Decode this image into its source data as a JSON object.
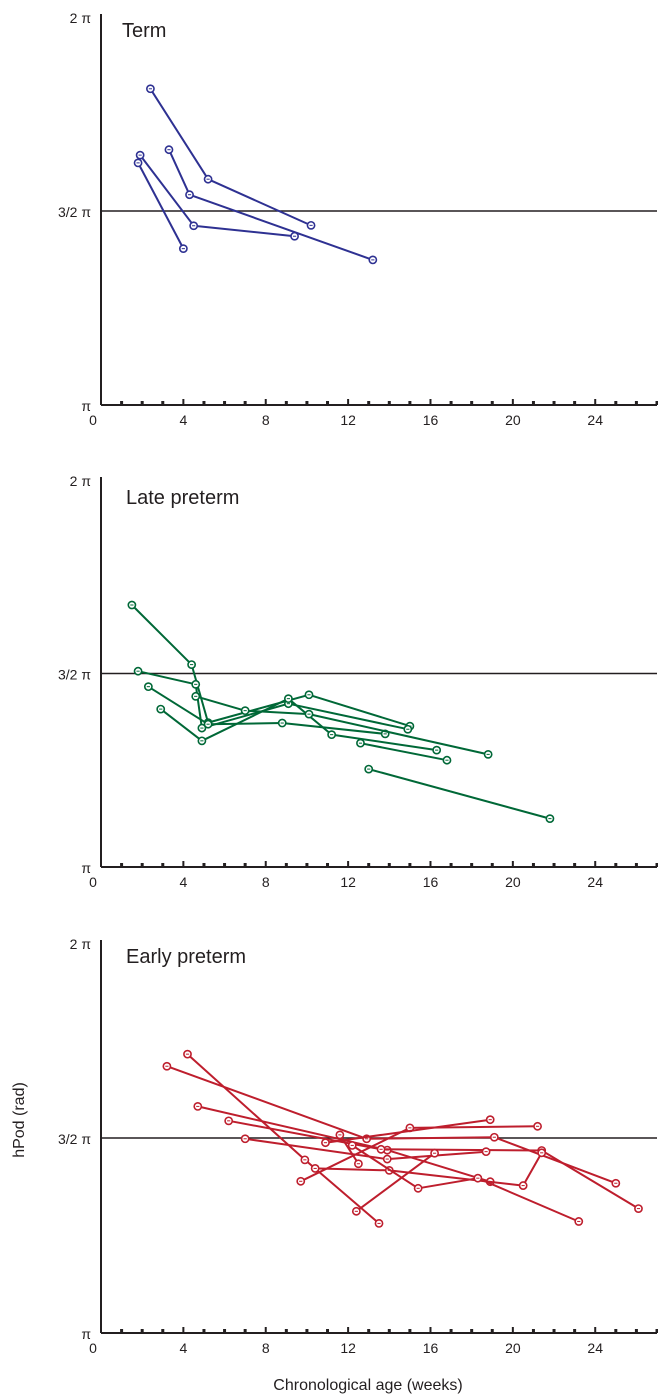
{
  "figure": {
    "ylabel": "hPod (rad)",
    "xlabel": "Chronological age (weeks)"
  },
  "chart_data": [
    {
      "type": "line",
      "title": "Term",
      "color": "#2e3192",
      "xlim": [
        0,
        27
      ],
      "ylim_pi": [
        1,
        2
      ],
      "x_ticks": [
        0,
        4,
        8,
        12,
        16,
        20,
        24
      ],
      "y_tick_labels": [
        "π",
        "3/2 π",
        "2 π"
      ],
      "reference_line_pi": 1.5,
      "grid": false,
      "series": [
        {
          "x": [
            2.4,
            5.2,
            10.2
          ],
          "y_pi": [
            1.815,
            1.582,
            1.463
          ]
        },
        {
          "x": [
            3.3,
            4.3,
            13.2
          ],
          "y_pi": [
            1.658,
            1.542,
            1.374
          ]
        },
        {
          "x": [
            1.9,
            4.5,
            9.4
          ],
          "y_pi": [
            1.644,
            1.462,
            1.435
          ]
        },
        {
          "x": [
            1.8,
            4.0
          ],
          "y_pi": [
            1.624,
            1.403
          ]
        }
      ]
    },
    {
      "type": "line",
      "title": "Late preterm",
      "color": "#006837",
      "xlim": [
        0,
        27
      ],
      "ylim_pi": [
        1,
        2
      ],
      "x_ticks": [
        0,
        4,
        8,
        12,
        16,
        20,
        24
      ],
      "y_tick_labels": [
        "π",
        "3/2 π",
        "2 π"
      ],
      "reference_line_pi": 1.5,
      "grid": false,
      "series": [
        {
          "x": [
            1.5,
            4.4,
            5.2,
            10.1,
            15.0
          ],
          "y_pi": [
            1.677,
            1.523,
            1.373,
            1.445,
            1.364
          ]
        },
        {
          "x": [
            1.8,
            4.6,
            4.9,
            9.1,
            14.9
          ],
          "y_pi": [
            1.506,
            1.472,
            1.359,
            1.422,
            1.356
          ]
        },
        {
          "x": [
            2.3,
            5.2,
            8.8,
            13.8
          ],
          "y_pi": [
            1.466,
            1.369,
            1.372,
            1.344
          ]
        },
        {
          "x": [
            2.9,
            4.9,
            9.1,
            11.2,
            16.3
          ],
          "y_pi": [
            1.408,
            1.326,
            1.435,
            1.342,
            1.302
          ]
        },
        {
          "x": [
            4.6,
            7.0,
            10.1,
            18.8
          ],
          "y_pi": [
            1.441,
            1.404,
            1.395,
            1.291
          ]
        },
        {
          "x": [
            12.6,
            16.8
          ],
          "y_pi": [
            1.32,
            1.276
          ]
        },
        {
          "x": [
            13.0,
            21.8
          ],
          "y_pi": [
            1.253,
            1.125
          ]
        }
      ]
    },
    {
      "type": "line",
      "title": "Early preterm",
      "color": "#be1e2d",
      "xlim": [
        0,
        27
      ],
      "ylim_pi": [
        1,
        2
      ],
      "x_ticks": [
        0,
        4,
        8,
        12,
        16,
        20,
        24
      ],
      "y_tick_labels": [
        "π",
        "3/2 π",
        "2 π"
      ],
      "reference_line_pi": 1.5,
      "grid": false,
      "series": [
        {
          "x": [
            3.2,
            12.9,
            19.1,
            25.0
          ],
          "y_pi": [
            1.684,
            1.498,
            1.502,
            1.384
          ]
        },
        {
          "x": [
            4.2,
            9.9,
            13.5
          ],
          "y_pi": [
            1.715,
            1.444,
            1.281
          ]
        },
        {
          "x": [
            4.7,
            13.9,
            18.9
          ],
          "y_pi": [
            1.581,
            1.469,
            1.388
          ]
        },
        {
          "x": [
            6.2,
            13.6,
            21.4,
            26.1
          ],
          "y_pi": [
            1.544,
            1.471,
            1.468,
            1.319
          ]
        },
        {
          "x": [
            7.0,
            13.9,
            18.7
          ],
          "y_pi": [
            1.498,
            1.446,
            1.465
          ]
        },
        {
          "x": [
            9.7,
            15.0,
            21.2
          ],
          "y_pi": [
            1.389,
            1.526,
            1.53
          ]
        },
        {
          "x": [
            10.4,
            14.0,
            20.5,
            21.4
          ],
          "y_pi": [
            1.422,
            1.417,
            1.378,
            1.462
          ]
        },
        {
          "x": [
            10.9,
            18.9
          ],
          "y_pi": [
            1.488,
            1.547
          ]
        },
        {
          "x": [
            11.6,
            12.5
          ],
          "y_pi": [
            1.508,
            1.434
          ]
        },
        {
          "x": [
            12.2,
            15.4,
            18.3,
            23.2
          ],
          "y_pi": [
            1.481,
            1.371,
            1.397,
            1.286
          ]
        },
        {
          "x": [
            12.4,
            16.2
          ],
          "y_pi": [
            1.312,
            1.461
          ]
        }
      ]
    }
  ]
}
